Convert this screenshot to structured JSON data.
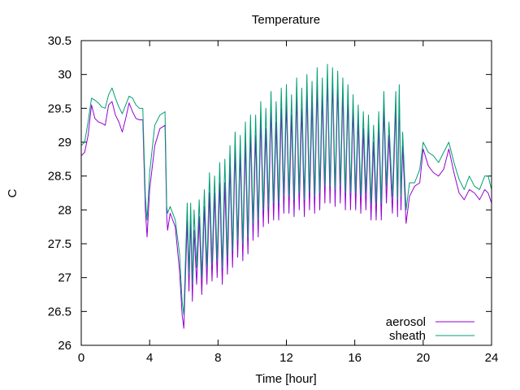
{
  "chart_data": {
    "type": "line",
    "title": "Temperature",
    "xlabel": "Time [hour]",
    "ylabel": "C",
    "xlim": [
      0,
      24
    ],
    "ylim": [
      26,
      30.5
    ],
    "xticks": [
      0,
      4,
      8,
      12,
      16,
      20,
      24
    ],
    "yticks": [
      26,
      26.5,
      27,
      27.5,
      28,
      28.5,
      29,
      29.5,
      30,
      30.5
    ],
    "ytick_labels": [
      "26",
      "26.5",
      "27",
      "27.5",
      "28",
      "28.5",
      "29",
      "29.5",
      "30",
      "30.5"
    ],
    "legend_position": "bottom-right",
    "grid": false,
    "series": [
      {
        "name": "aerosol",
        "color": "#9400d3",
        "x": [
          0.0,
          0.2,
          0.4,
          0.6,
          0.8,
          1.0,
          1.2,
          1.4,
          1.6,
          1.8,
          2.0,
          2.2,
          2.4,
          2.6,
          2.8,
          3.0,
          3.2,
          3.4,
          3.6,
          3.75,
          3.8,
          3.85,
          4.0,
          4.3,
          4.6,
          4.9,
          5.0,
          5.05,
          5.2,
          5.5,
          5.75,
          5.9,
          6.0,
          6.1,
          6.2,
          6.3,
          6.4,
          6.5,
          6.6,
          6.75,
          6.9,
          7.05,
          7.2,
          7.35,
          7.5,
          7.65,
          7.8,
          7.95,
          8.1,
          8.25,
          8.4,
          8.55,
          8.7,
          8.85,
          9.0,
          9.15,
          9.3,
          9.45,
          9.6,
          9.75,
          9.9,
          10.05,
          10.2,
          10.35,
          10.5,
          10.65,
          10.8,
          10.95,
          11.1,
          11.25,
          11.4,
          11.55,
          11.7,
          11.85,
          12.0,
          12.15,
          12.3,
          12.45,
          12.6,
          12.75,
          12.9,
          13.05,
          13.2,
          13.35,
          13.5,
          13.65,
          13.8,
          13.95,
          14.1,
          14.25,
          14.4,
          14.55,
          14.7,
          14.85,
          15.0,
          15.15,
          15.3,
          15.45,
          15.6,
          15.75,
          15.9,
          16.05,
          16.2,
          16.35,
          16.5,
          16.65,
          16.8,
          16.95,
          17.1,
          17.25,
          17.4,
          17.55,
          17.7,
          17.85,
          18.0,
          18.2,
          18.4,
          18.5,
          18.6,
          18.7,
          18.8,
          19.0,
          19.2,
          19.5,
          19.8,
          20.0,
          20.3,
          20.6,
          20.9,
          21.2,
          21.5,
          21.8,
          22.1,
          22.4,
          22.7,
          23.0,
          23.3,
          23.6,
          23.8,
          24.0
        ],
        "values": [
          28.8,
          28.85,
          29.1,
          29.55,
          29.35,
          29.3,
          29.28,
          29.25,
          29.55,
          29.6,
          29.4,
          29.3,
          29.15,
          29.35,
          29.58,
          29.45,
          29.35,
          29.33,
          29.33,
          28.0,
          27.8,
          27.6,
          28.3,
          28.95,
          29.2,
          29.25,
          27.9,
          27.7,
          27.95,
          27.75,
          27.1,
          26.45,
          26.25,
          27.05,
          27.85,
          26.8,
          27.9,
          26.65,
          27.7,
          26.9,
          27.9,
          26.75,
          28.05,
          26.9,
          28.25,
          26.95,
          28.25,
          27.0,
          28.4,
          26.9,
          28.4,
          27.05,
          28.65,
          27.15,
          28.9,
          27.3,
          28.85,
          27.25,
          29.0,
          27.35,
          29.15,
          27.55,
          29.1,
          27.6,
          29.35,
          27.75,
          29.2,
          27.8,
          29.5,
          27.85,
          29.3,
          27.85,
          29.5,
          27.95,
          29.6,
          27.95,
          29.4,
          27.9,
          29.7,
          28.0,
          29.5,
          27.9,
          29.75,
          28.0,
          29.6,
          27.95,
          29.85,
          28.0,
          29.7,
          28.1,
          29.95,
          28.1,
          29.9,
          28.05,
          29.85,
          28.1,
          29.75,
          28.0,
          29.65,
          28.0,
          29.5,
          28.0,
          29.35,
          27.95,
          29.2,
          28.0,
          29.2,
          27.85,
          29.0,
          27.85,
          29.25,
          27.85,
          29.5,
          28.1,
          29.1,
          27.95,
          29.55,
          27.9,
          29.7,
          28.0,
          28.95,
          27.8,
          28.2,
          28.35,
          28.4,
          28.9,
          28.65,
          28.55,
          28.5,
          28.6,
          28.9,
          28.55,
          28.25,
          28.15,
          28.3,
          28.25,
          28.15,
          28.3,
          28.25,
          28.1
        ]
      },
      {
        "name": "sheath",
        "color": "#009e73",
        "x": [
          0.0,
          0.2,
          0.4,
          0.6,
          0.8,
          1.0,
          1.2,
          1.4,
          1.6,
          1.8,
          2.0,
          2.2,
          2.4,
          2.6,
          2.8,
          3.0,
          3.2,
          3.4,
          3.6,
          3.75,
          3.8,
          3.85,
          4.0,
          4.3,
          4.6,
          4.9,
          5.0,
          5.05,
          5.2,
          5.5,
          5.75,
          5.9,
          6.0,
          6.1,
          6.2,
          6.3,
          6.4,
          6.5,
          6.6,
          6.75,
          6.9,
          7.05,
          7.2,
          7.35,
          7.5,
          7.65,
          7.8,
          7.95,
          8.1,
          8.25,
          8.4,
          8.55,
          8.7,
          8.85,
          9.0,
          9.15,
          9.3,
          9.45,
          9.6,
          9.75,
          9.9,
          10.05,
          10.2,
          10.35,
          10.5,
          10.65,
          10.8,
          10.95,
          11.1,
          11.25,
          11.4,
          11.55,
          11.7,
          11.85,
          12.0,
          12.15,
          12.3,
          12.45,
          12.6,
          12.75,
          12.9,
          13.05,
          13.2,
          13.35,
          13.5,
          13.65,
          13.8,
          13.95,
          14.1,
          14.25,
          14.4,
          14.55,
          14.7,
          14.85,
          15.0,
          15.15,
          15.3,
          15.45,
          15.6,
          15.75,
          15.9,
          16.05,
          16.2,
          16.35,
          16.5,
          16.65,
          16.8,
          16.95,
          17.1,
          17.25,
          17.4,
          17.55,
          17.7,
          17.85,
          18.0,
          18.2,
          18.4,
          18.5,
          18.6,
          18.7,
          18.8,
          19.0,
          19.2,
          19.5,
          19.8,
          20.0,
          20.3,
          20.6,
          20.9,
          21.2,
          21.5,
          21.8,
          22.1,
          22.4,
          22.7,
          23.0,
          23.3,
          23.6,
          23.8,
          24.0
        ],
        "values": [
          28.95,
          29.0,
          29.3,
          29.65,
          29.62,
          29.58,
          29.52,
          29.5,
          29.7,
          29.8,
          29.65,
          29.52,
          29.42,
          29.55,
          29.68,
          29.65,
          29.55,
          29.5,
          29.5,
          28.2,
          28.0,
          27.85,
          28.55,
          29.25,
          29.4,
          29.45,
          28.05,
          27.95,
          28.05,
          27.85,
          27.35,
          26.65,
          26.45,
          27.3,
          28.1,
          27.05,
          28.1,
          26.9,
          28.0,
          27.15,
          28.15,
          27.0,
          28.3,
          27.15,
          28.55,
          27.2,
          28.5,
          27.25,
          28.7,
          27.15,
          28.75,
          27.3,
          28.95,
          27.4,
          29.15,
          27.55,
          29.1,
          27.5,
          29.3,
          27.6,
          29.4,
          27.8,
          29.4,
          27.85,
          29.6,
          28.0,
          29.5,
          28.05,
          29.75,
          28.1,
          29.6,
          28.1,
          29.8,
          28.2,
          29.85,
          28.2,
          29.7,
          28.15,
          29.95,
          28.25,
          29.8,
          28.15,
          30.0,
          28.25,
          29.9,
          28.2,
          30.1,
          28.25,
          29.95,
          28.35,
          30.15,
          28.35,
          30.1,
          28.3,
          30.05,
          28.35,
          29.95,
          28.25,
          29.85,
          28.25,
          29.7,
          28.25,
          29.55,
          28.2,
          29.45,
          28.25,
          29.4,
          28.1,
          29.25,
          28.1,
          29.45,
          28.1,
          29.75,
          28.35,
          29.3,
          28.2,
          29.75,
          28.15,
          29.85,
          28.2,
          29.15,
          28.0,
          28.4,
          28.4,
          28.6,
          29.0,
          28.85,
          28.8,
          28.7,
          28.85,
          29.0,
          28.7,
          28.45,
          28.3,
          28.5,
          28.35,
          28.3,
          28.5,
          28.5,
          28.3
        ]
      }
    ]
  }
}
